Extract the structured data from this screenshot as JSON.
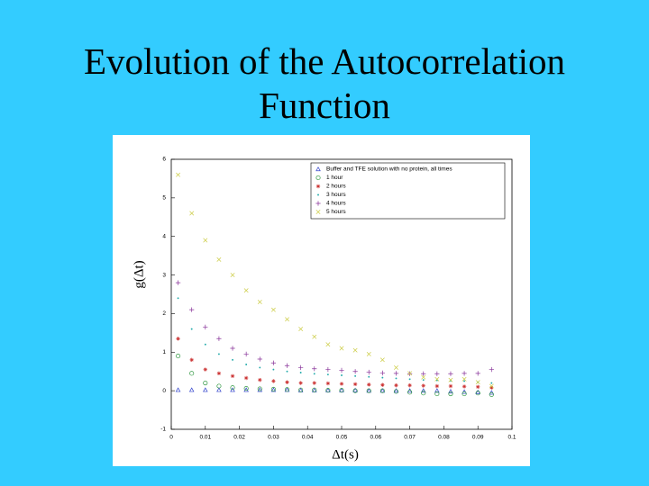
{
  "chart_data": {
    "type": "scatter",
    "title": "Evolution of the Autocorrelation Function",
    "xlabel": "Δt(s)",
    "ylabel": "g(Δt)",
    "xlim": [
      0,
      0.1
    ],
    "xticks": [
      0,
      0.01,
      0.02,
      0.03,
      0.04,
      0.05,
      0.06,
      0.07,
      0.08,
      0.09,
      0.1
    ],
    "ylim": [
      -1,
      6
    ],
    "yticks": [
      -1,
      0,
      1,
      2,
      3,
      4,
      5,
      6
    ],
    "legend": "upper right",
    "x": [
      0.002,
      0.006,
      0.01,
      0.014,
      0.018,
      0.022,
      0.026,
      0.03,
      0.034,
      0.038,
      0.042,
      0.046,
      0.05,
      0.054,
      0.058,
      0.062,
      0.066,
      0.07,
      0.074,
      0.078,
      0.082,
      0.086,
      0.09,
      0.094
    ],
    "series": [
      {
        "name": "Buffer and TFE solution with no protein, all times",
        "color": "#3344cc",
        "marker": "triangle",
        "values": [
          0.02,
          0.02,
          0.02,
          0.02,
          0.02,
          0.02,
          0.02,
          0.02,
          0.02,
          0.01,
          0.01,
          0.01,
          0.01,
          0.01,
          0,
          0,
          0,
          0,
          0,
          0,
          -0.02,
          -0.03,
          -0.04,
          -0.05
        ]
      },
      {
        "name": "1 hour",
        "color": "#339944",
        "marker": "circle",
        "values": [
          0.9,
          0.45,
          0.2,
          0.12,
          0.08,
          0.06,
          0.05,
          0.04,
          0.03,
          0.02,
          0.02,
          0.01,
          0.01,
          0,
          0,
          0,
          -0.02,
          -0.04,
          -0.06,
          -0.08,
          -0.08,
          -0.08,
          -0.06,
          -0.1
        ]
      },
      {
        "name": "2 hours",
        "color": "#cc3333",
        "marker": "asterisk",
        "values": [
          1.35,
          0.8,
          0.55,
          0.45,
          0.38,
          0.33,
          0.28,
          0.25,
          0.22,
          0.2,
          0.2,
          0.19,
          0.18,
          0.17,
          0.16,
          0.15,
          0.14,
          0.14,
          0.13,
          0.12,
          0.12,
          0.11,
          0.1,
          0.08
        ]
      },
      {
        "name": "3 hours",
        "color": "#22aaaa",
        "marker": "dot",
        "values": [
          2.4,
          1.6,
          1.2,
          0.95,
          0.8,
          0.68,
          0.6,
          0.55,
          0.5,
          0.47,
          0.44,
          0.42,
          0.4,
          0.38,
          0.36,
          0.34,
          0.32,
          0.3,
          0.28,
          0.27,
          0.26,
          0.25,
          0.22,
          0.2
        ]
      },
      {
        "name": "4 hours",
        "color": "#883399",
        "marker": "plus",
        "values": [
          2.8,
          2.1,
          1.65,
          1.35,
          1.1,
          0.95,
          0.82,
          0.72,
          0.65,
          0.6,
          0.57,
          0.55,
          0.53,
          0.5,
          0.48,
          0.46,
          0.45,
          0.44,
          0.44,
          0.44,
          0.44,
          0.45,
          0.45,
          0.55
        ]
      },
      {
        "name": "5 hours",
        "color": "#cccc44",
        "marker": "x",
        "values": [
          5.6,
          4.6,
          3.9,
          3.4,
          3.0,
          2.6,
          2.3,
          2.1,
          1.85,
          1.6,
          1.4,
          1.2,
          1.1,
          1.05,
          0.95,
          0.8,
          0.6,
          0.45,
          0.35,
          0.3,
          0.28,
          0.3,
          0.22,
          0.12
        ]
      }
    ]
  }
}
